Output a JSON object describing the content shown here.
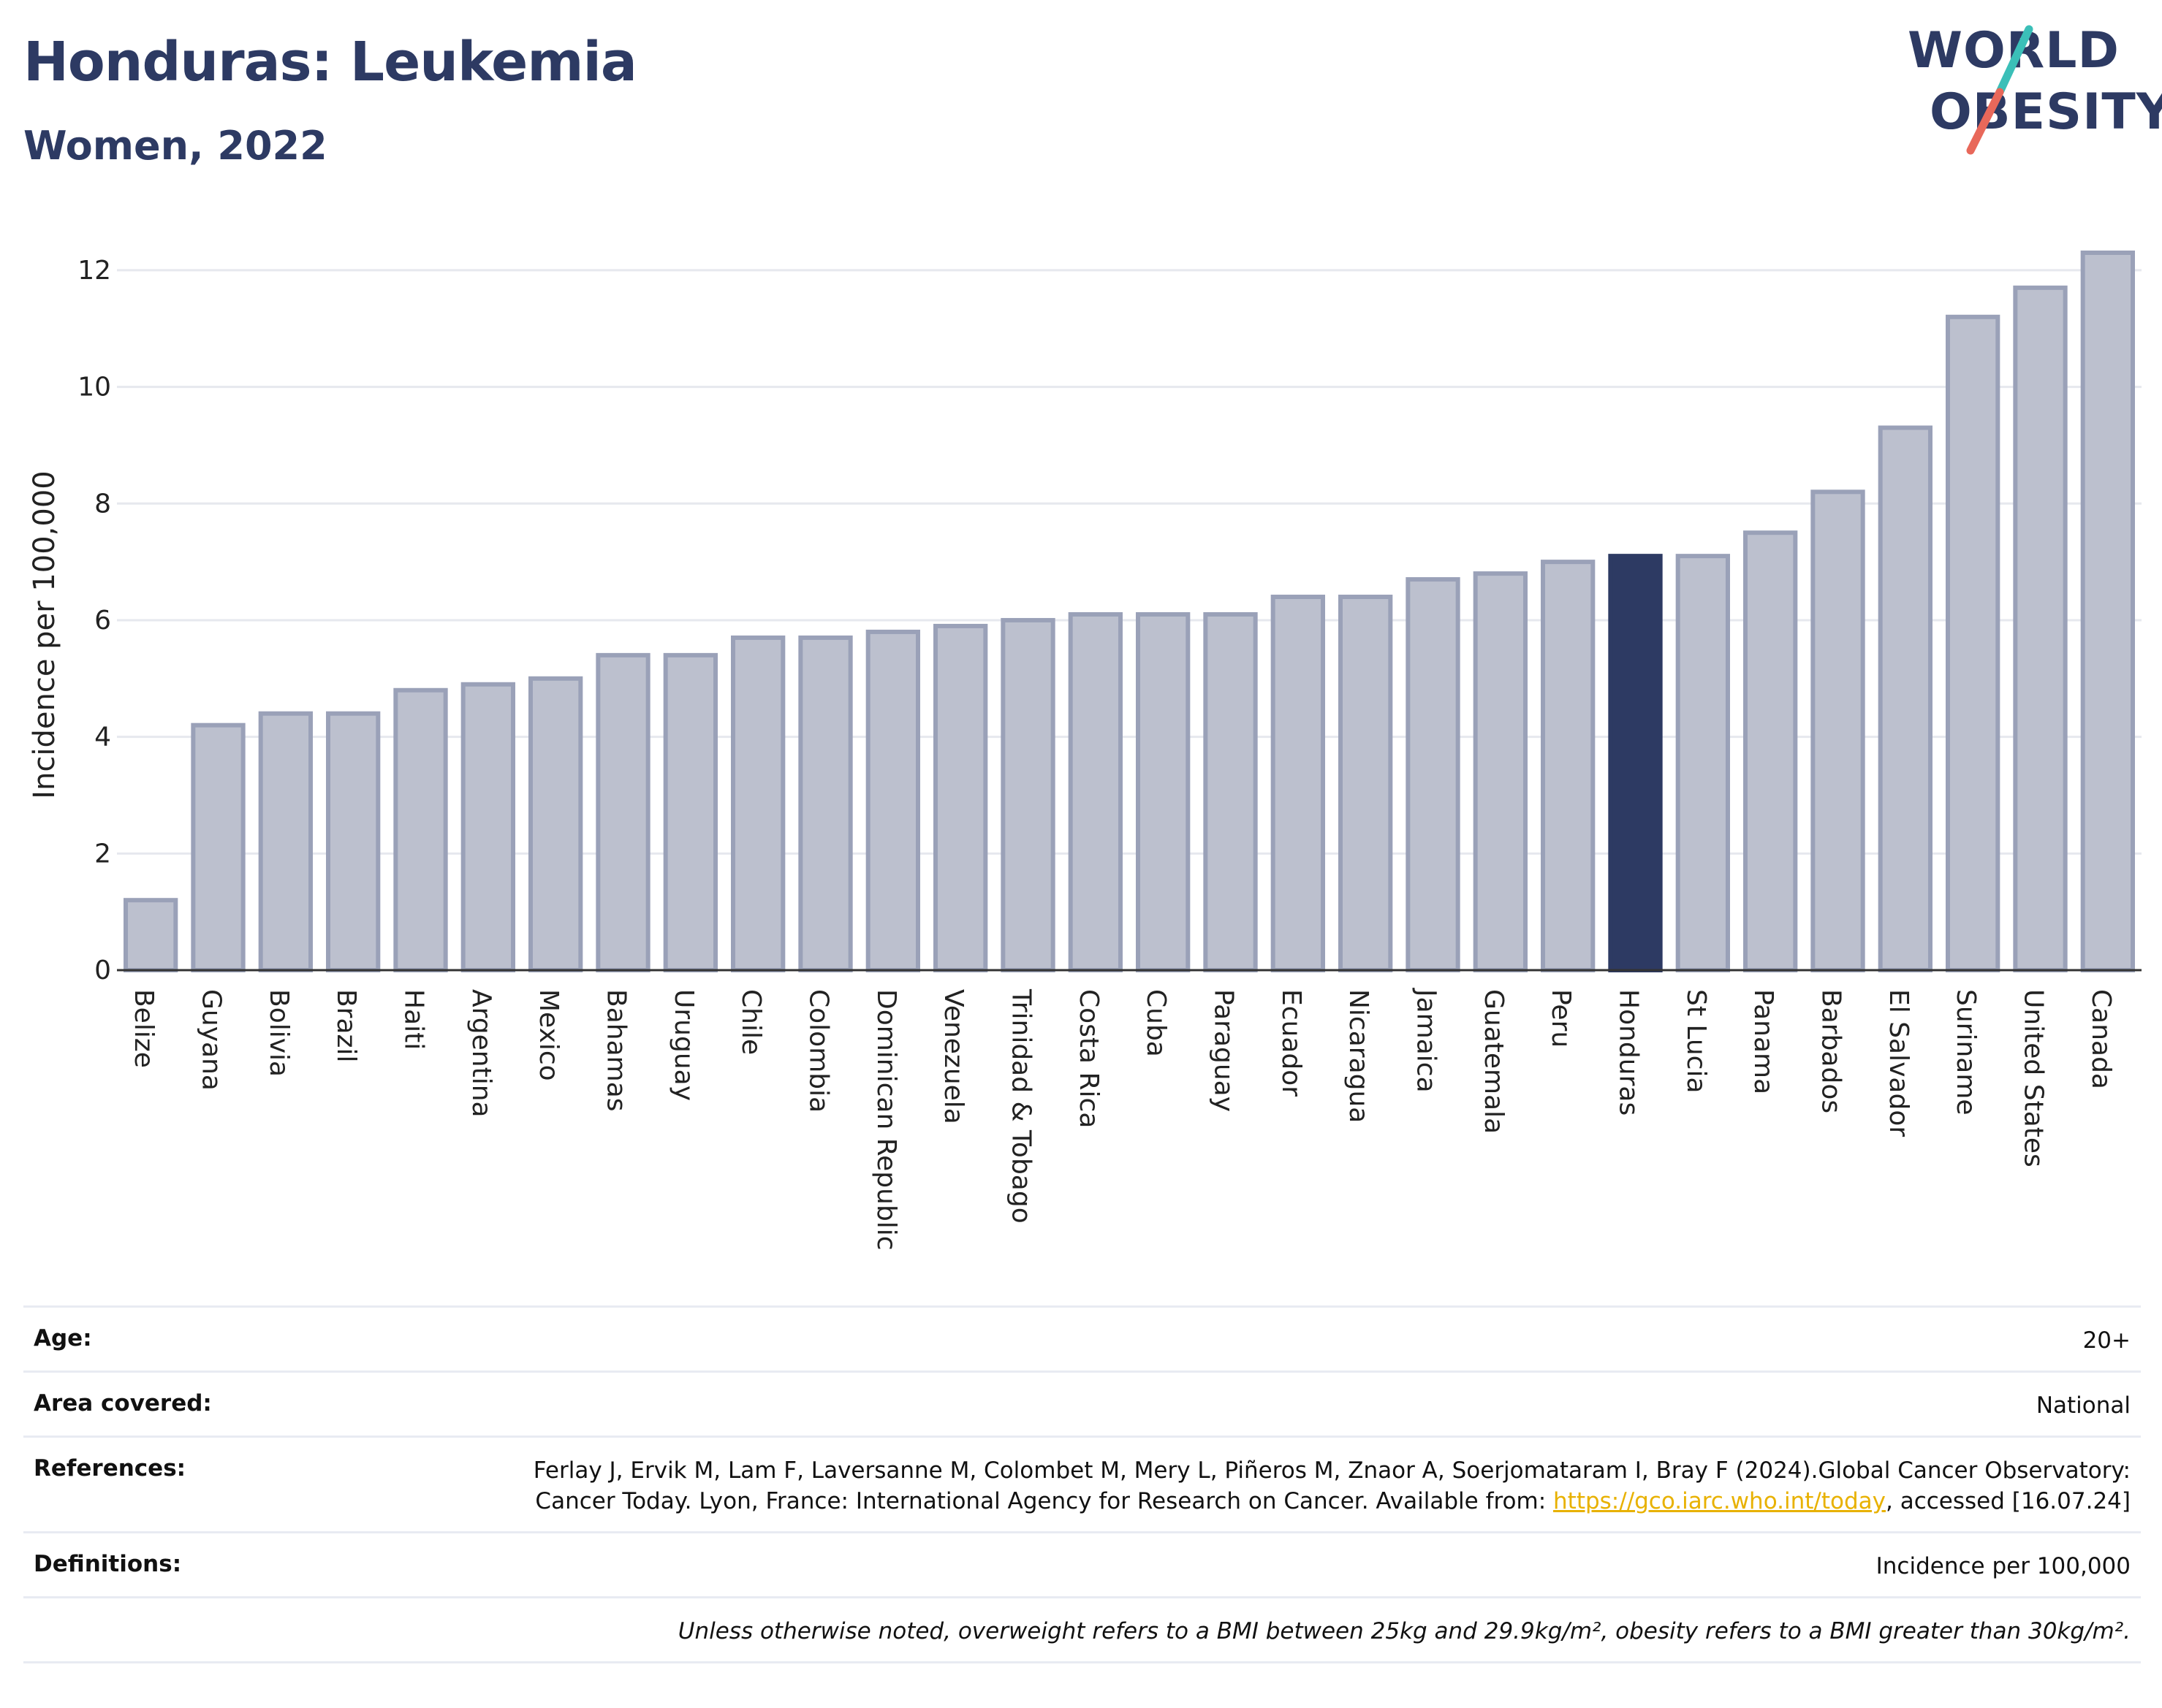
{
  "header": {
    "title": "Honduras: Leukemia",
    "subtitle": "Women, 2022",
    "logo_line1": "WORLD",
    "logo_line2": "OBESITY"
  },
  "chart_data": {
    "type": "bar",
    "ylabel": "Incidence per 100,000",
    "xlabel": "",
    "ylim": [
      0,
      12.5
    ],
    "yticks": [
      0,
      2,
      4,
      6,
      8,
      10,
      12
    ],
    "grid": true,
    "highlight": "Honduras",
    "colors": {
      "bar": "#bcc0ce",
      "bar_border": "#9aa1b8",
      "highlight": "#2d3a63",
      "grid": "#e6e8ee",
      "axis": "#333333"
    },
    "categories": [
      "Belize",
      "Guyana",
      "Bolivia",
      "Brazil",
      "Haiti",
      "Argentina",
      "Mexico",
      "Bahamas",
      "Uruguay",
      "Chile",
      "Colombia",
      "Dominican Republic",
      "Venezuela",
      "Trinidad & Tobago",
      "Costa Rica",
      "Cuba",
      "Paraguay",
      "Ecuador",
      "Nicaragua",
      "Jamaica",
      "Guatemala",
      "Peru",
      "Honduras",
      "St Lucia",
      "Panama",
      "Barbados",
      "El Salvador",
      "Suriname",
      "United States",
      "Canada"
    ],
    "values": [
      1.2,
      4.2,
      4.4,
      4.4,
      4.8,
      4.9,
      5.0,
      5.4,
      5.4,
      5.7,
      5.7,
      5.8,
      5.9,
      6.0,
      6.1,
      6.1,
      6.1,
      6.4,
      6.4,
      6.7,
      6.8,
      7.0,
      7.1,
      7.1,
      7.5,
      8.2,
      9.3,
      11.2,
      11.7,
      12.3
    ]
  },
  "meta": {
    "age_label": "Age:",
    "age_value": "20+",
    "area_label": "Area covered:",
    "area_value": "National",
    "ref_label": "References:",
    "ref_text_1": "Ferlay J, Ervik M, Lam F, Laversanne M, Colombet M, Mery L, Piñeros M, Znaor A, Soerjomataram I, Bray F (2024).Global Cancer Observatory: Cancer Today. Lyon, France: International Agency for Research on Cancer. Available from: ",
    "ref_link": "https://gco.iarc.who.int/today",
    "ref_text_2": ", accessed [16.07.24]",
    "def_label": "Definitions:",
    "def_value": "Incidence per 100,000",
    "note": "Unless otherwise noted, overweight refers to a BMI between 25kg and 29.9kg/m², obesity refers to a BMI greater than 30kg/m²."
  }
}
